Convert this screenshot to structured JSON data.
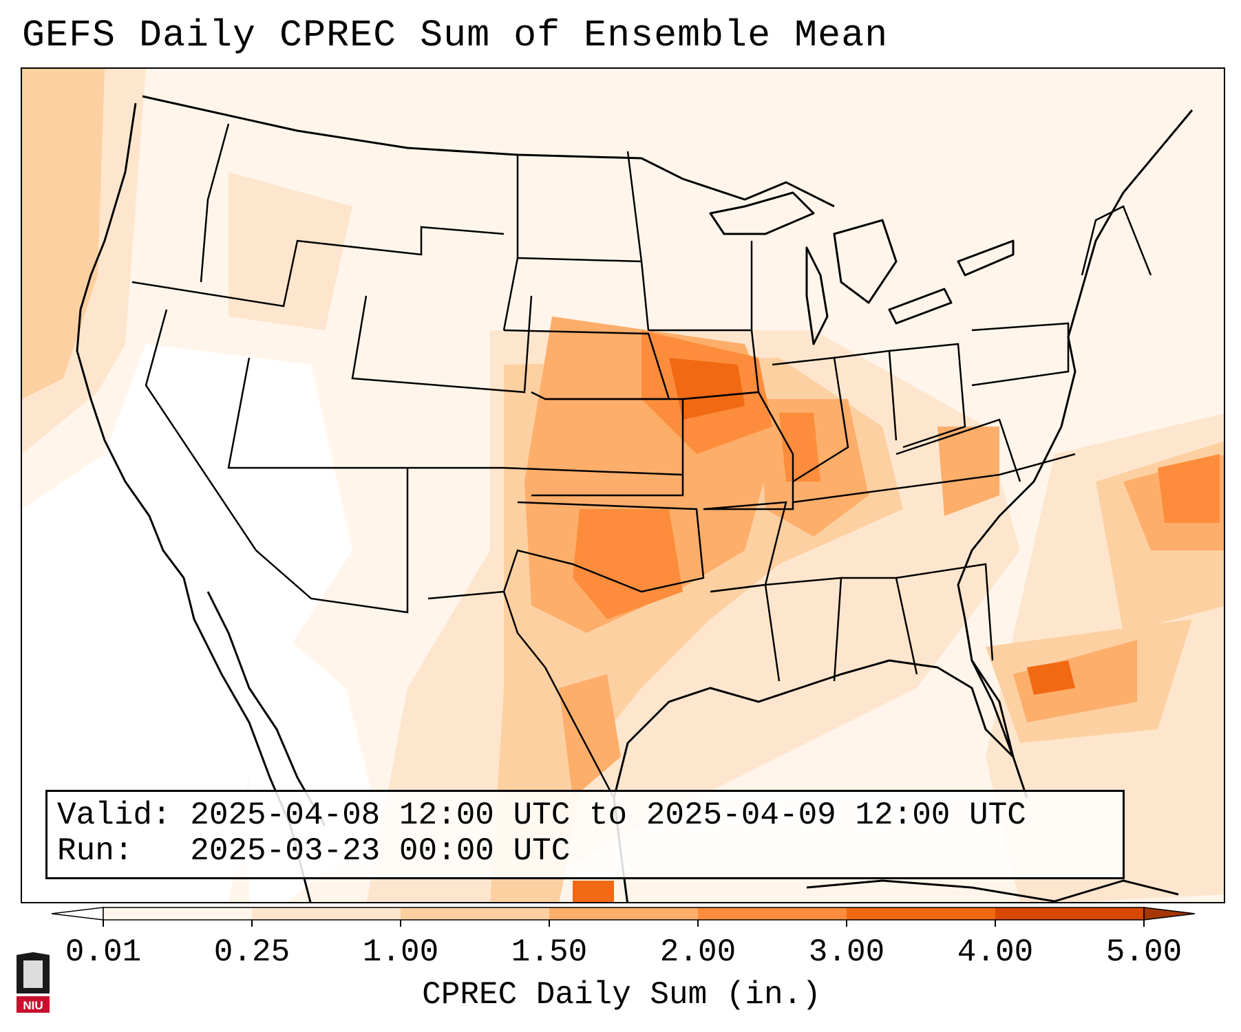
{
  "title": "GEFS Daily CPREC Sum of Ensemble Mean",
  "info": {
    "valid": "Valid: 2025-04-08 12:00 UTC to 2025-04-09 12:00 UTC",
    "run": "Run:   2025-03-23 00:00 UTC"
  },
  "colorbar": {
    "label": "CPREC Daily Sum (in.)",
    "ticks": [
      "0.01",
      "0.25",
      "1.00",
      "1.50",
      "2.00",
      "3.00",
      "4.00",
      "5.00"
    ],
    "colors": [
      "#fff5eb",
      "#fee6ce",
      "#fdd0a2",
      "#fdae6b",
      "#fd8d3c",
      "#f16913",
      "#d94801"
    ],
    "under_color": "#ffffff",
    "over_color": "#a63603"
  },
  "logo": {
    "text": "NIU"
  },
  "colors": {
    "outline": "#000000"
  }
}
